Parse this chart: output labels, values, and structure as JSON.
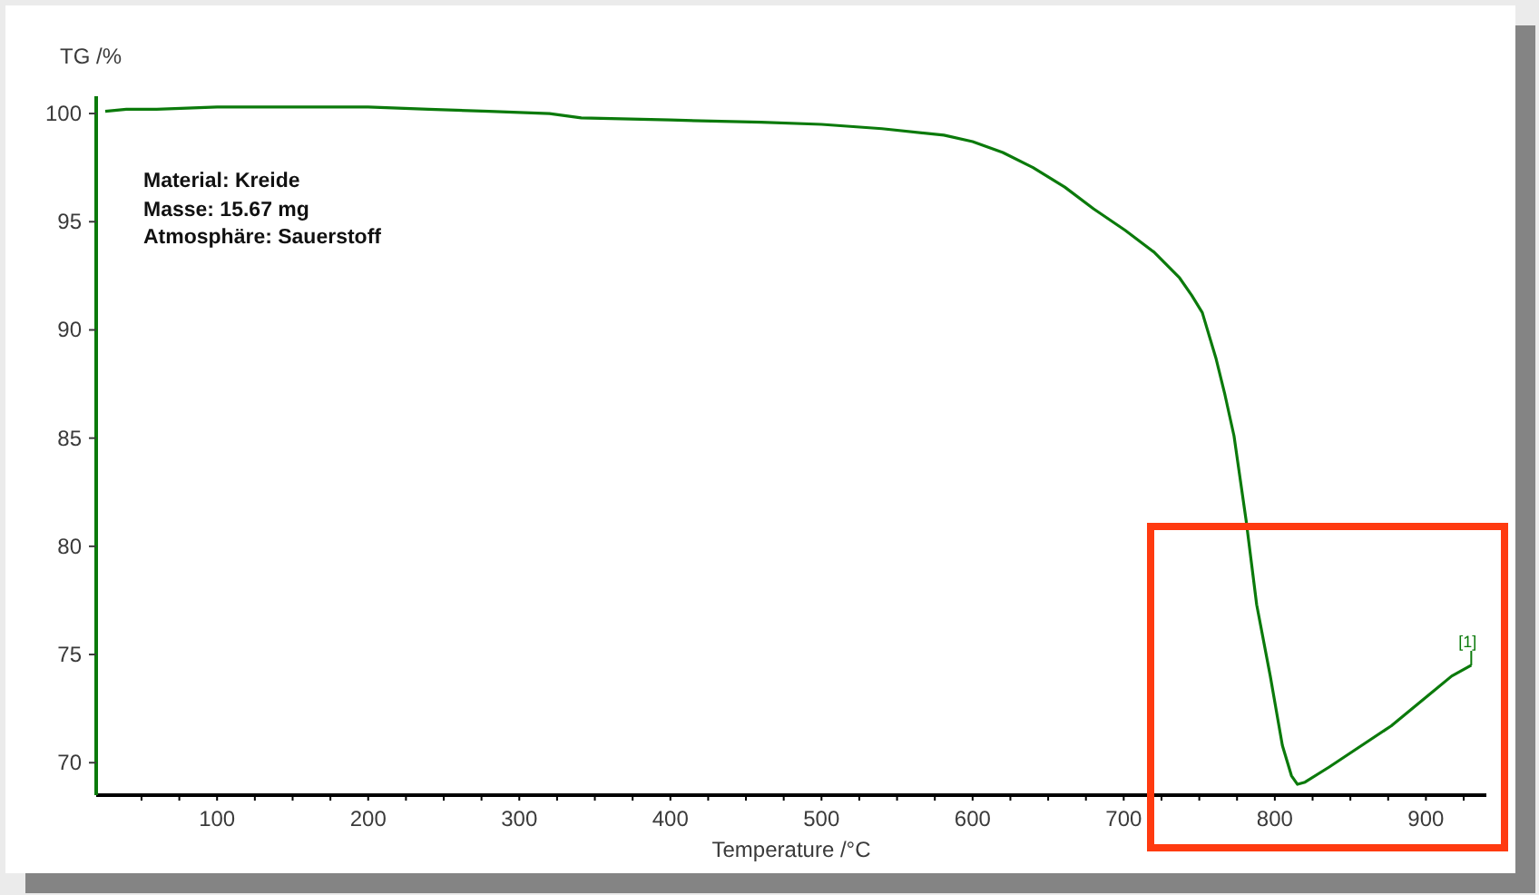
{
  "chart_data": {
    "type": "line",
    "xlabel": "Temperature /°C",
    "ylabel": "TG /%",
    "x": [
      26,
      40,
      60,
      100,
      150,
      200,
      240,
      280,
      320,
      341,
      400,
      460,
      500,
      540,
      581,
      600,
      620,
      640,
      661,
      680,
      701,
      720,
      737,
      745,
      752,
      761,
      767,
      773,
      781,
      788,
      797,
      805,
      811,
      815,
      820,
      836,
      877,
      917,
      930
    ],
    "series": [
      {
        "color": "#0b7a0b",
        "values": [
          100.1,
          100.2,
          100.2,
          100.3,
          100.3,
          100.3,
          100.2,
          100.1,
          100.0,
          99.8,
          99.7,
          99.6,
          99.5,
          99.3,
          99.0,
          98.7,
          98.2,
          97.5,
          96.6,
          95.6,
          94.6,
          93.6,
          92.4,
          91.6,
          90.8,
          88.7,
          87.0,
          85.1,
          81.2,
          77.3,
          74.0,
          70.8,
          69.4,
          69.0,
          69.1,
          69.8,
          71.7,
          74.0,
          74.5
        ]
      }
    ],
    "xlim": [
      20,
      940
    ],
    "ylim": [
      68.5,
      100.8
    ],
    "xticks": [
      {
        "value": 50,
        "label": null
      },
      {
        "value": 75,
        "label": null
      },
      100,
      {
        "value": 125,
        "label": null
      },
      {
        "value": 150,
        "label": null
      },
      {
        "value": 175,
        "label": null
      },
      200,
      {
        "value": 225,
        "label": null
      },
      {
        "value": 250,
        "label": null
      },
      {
        "value": 275,
        "label": null
      },
      300,
      {
        "value": 325,
        "label": null
      },
      {
        "value": 350,
        "label": null
      },
      {
        "value": 375,
        "label": null
      },
      400,
      {
        "value": 425,
        "label": null
      },
      {
        "value": 450,
        "label": null
      },
      {
        "value": 475,
        "label": null
      },
      500,
      {
        "value": 525,
        "label": null
      },
      {
        "value": 550,
        "label": null
      },
      {
        "value": 575,
        "label": null
      },
      600,
      {
        "value": 625,
        "label": null
      },
      {
        "value": 650,
        "label": null
      },
      {
        "value": 675,
        "label": null
      },
      700,
      {
        "value": 725,
        "label": null
      },
      {
        "value": 750,
        "label": null
      },
      {
        "value": 775,
        "label": null
      },
      800,
      {
        "value": 825,
        "label": null
      },
      {
        "value": 850,
        "label": null
      },
      {
        "value": 875,
        "label": null
      },
      900,
      {
        "value": 925,
        "label": null
      }
    ],
    "yticks": [
      70,
      75,
      80,
      85,
      90,
      95,
      100
    ],
    "annotations": [
      "Material: Kreide",
      "Masse: 15.67 mg",
      "Atmosphäre: Sauerstoff",
      {
        "text": "[1]",
        "x": 930,
        "y": 74.5
      }
    ]
  }
}
